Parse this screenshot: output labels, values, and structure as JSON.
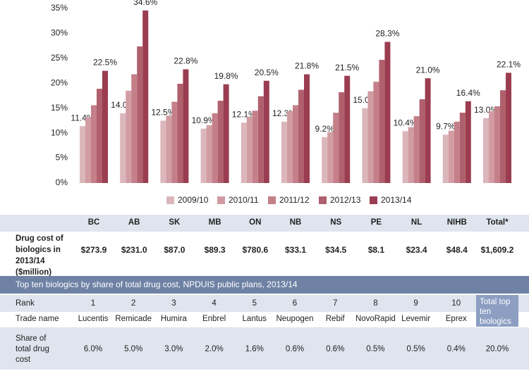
{
  "chart_data": {
    "type": "bar",
    "categories": [
      "BC",
      "AB",
      "SK",
      "MB",
      "ON",
      "NB",
      "NS",
      "PE",
      "NL",
      "NIHB",
      "Total*"
    ],
    "series": [
      {
        "name": "2009/10",
        "color": "#dbb6bb",
        "values": [
          11.4,
          14.0,
          12.5,
          10.9,
          12.1,
          12.3,
          9.2,
          15.0,
          10.4,
          9.7,
          13.0
        ],
        "value_labels": [
          "11.4%",
          "14.0%",
          "12.5%",
          "10.9%",
          "12.1%",
          "12.3%",
          "9.2%",
          "15.0%",
          "10.4%",
          "9.7%",
          "13.0%"
        ]
      },
      {
        "name": "2010/11",
        "color": "#d29ca3",
        "values": [
          13.2,
          18.5,
          13.5,
          11.6,
          13.3,
          14.4,
          10.2,
          18.4,
          11.2,
          10.5,
          14.4
        ]
      },
      {
        "name": "2011/12",
        "color": "#c47f89",
        "values": [
          15.6,
          21.8,
          16.3,
          14.0,
          14.5,
          15.6,
          14.1,
          20.3,
          13.4,
          12.3,
          15.4
        ]
      },
      {
        "name": "2012/13",
        "color": "#b0606d",
        "values": [
          18.9,
          27.4,
          19.9,
          16.5,
          17.4,
          18.7,
          18.2,
          24.7,
          16.8,
          14.1,
          18.6
        ]
      },
      {
        "name": "2013/14",
        "color": "#9b3d50",
        "values": [
          22.5,
          34.6,
          22.8,
          19.8,
          20.5,
          21.8,
          21.5,
          28.3,
          21.0,
          16.4,
          22.1
        ],
        "value_labels": [
          "22.5%",
          "34.6%",
          "22.8%",
          "19.8%",
          "20.5%",
          "21.8%",
          "21.5%",
          "28.3%",
          "21.0%",
          "16.4%",
          "22.1%"
        ]
      }
    ],
    "ylim": [
      0,
      35
    ],
    "yticks": [
      {
        "value": 0,
        "label": "0%"
      },
      {
        "value": 5,
        "label": "5%"
      },
      {
        "value": 10,
        "label": "10%"
      },
      {
        "value": 15,
        "label": "15%"
      },
      {
        "value": 20,
        "label": "20%"
      },
      {
        "value": 25,
        "label": "25%"
      },
      {
        "value": 30,
        "label": "30%"
      },
      {
        "value": 35,
        "label": "35%"
      }
    ],
    "grid": false,
    "legend": "bottom"
  },
  "cost_table": {
    "row_label": "Drug cost of biologics in 2013/14 ($million)",
    "values": [
      "$273.9",
      "$231.0",
      "$87.0",
      "$89.3",
      "$780.6",
      "$33.1",
      "$34.5",
      "$8.1",
      "$23.4",
      "$48.4",
      "$1,609.2"
    ]
  },
  "top_ten": {
    "title": "Top ten biologics by share of total drug cost, NPDUIS public plans, 2013/14",
    "rank_label": "Rank",
    "ranks": [
      1,
      2,
      3,
      4,
      5,
      6,
      7,
      8,
      9,
      10
    ],
    "trade_label": "Trade name",
    "names": [
      "Lucentis",
      "Remicade",
      "Humira",
      "Enbrel",
      "Lantus",
      "Neupogen",
      "Rebif",
      "NovoRapid",
      "Levemir",
      "Eprex"
    ],
    "share_label": "Share of total drug cost",
    "shares": [
      "6.0%",
      "5.0%",
      "3.0%",
      "2.0%",
      "1.6%",
      "0.6%",
      "0.6%",
      "0.5%",
      "0.5%",
      "0.4%"
    ],
    "total_label": "Total top ten biologics",
    "total_share": "20.0%"
  }
}
